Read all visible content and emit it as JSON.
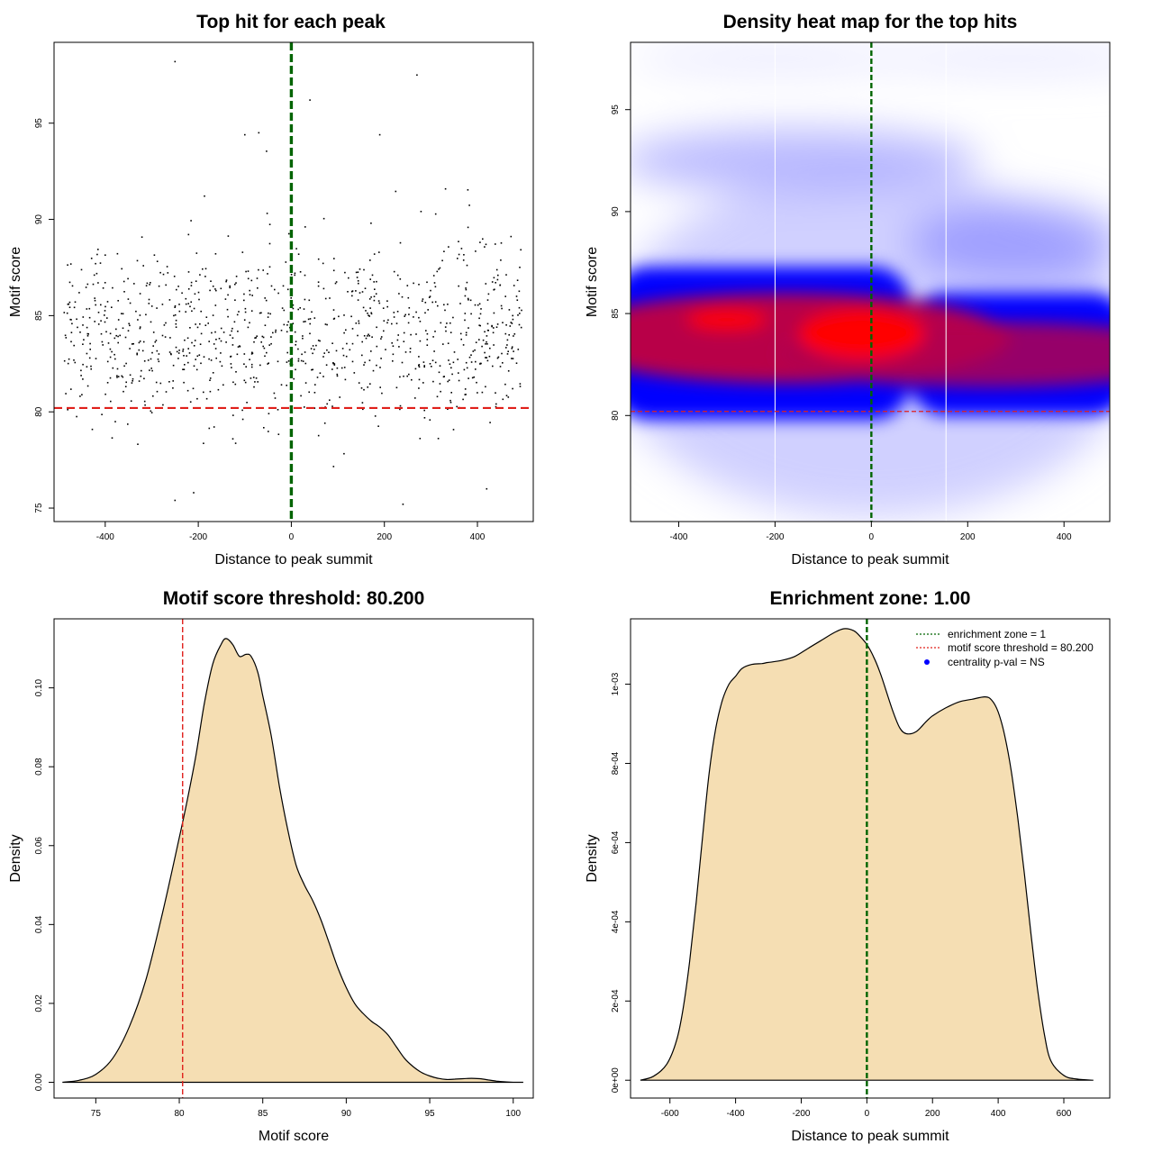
{
  "colors": {
    "threshold_red": "#e0201b",
    "zone_green": "#006400",
    "density_fill": "#f5deb3",
    "heat_low": "#ffffff",
    "heat_mid": "#0000ff",
    "heat_high": "#ff0000"
  },
  "chart_data": [
    {
      "id": "scatter",
      "type": "scatter",
      "title": "Top hit for each peak",
      "xlabel": "Distance to peak summit",
      "ylabel": "Motif score",
      "xlim": [
        -510,
        520
      ],
      "ylim": [
        74.3,
        99.2
      ],
      "xticks": [
        -400,
        -200,
        0,
        200,
        400
      ],
      "xtick_labels": [
        "-400",
        "-200",
        "0",
        "200",
        "400"
      ],
      "yticks": [
        75,
        80,
        85,
        90,
        95
      ],
      "ytick_labels": [
        "75",
        "80",
        "85",
        "90",
        "95"
      ],
      "threshold": 80.2,
      "zone_center": 0,
      "n_points": 1000,
      "highlight_points": [
        [
          -250,
          98.2
        ],
        [
          270,
          97.5
        ],
        [
          40,
          96.2
        ],
        [
          -70,
          94.5
        ],
        [
          -100,
          94.4
        ],
        [
          190,
          94.4
        ],
        [
          240,
          75.2
        ],
        [
          -250,
          75.4
        ],
        [
          -210,
          75.8
        ],
        [
          420,
          76.0
        ]
      ]
    },
    {
      "id": "heatmap",
      "type": "heatmap",
      "title": "Density heat map for the top hits",
      "xlabel": "Distance to peak summit",
      "ylabel": "Motif score",
      "xlim": [
        -500,
        495
      ],
      "ylim": [
        74.8,
        98.3
      ],
      "xticks": [
        -400,
        -200,
        0,
        200,
        400
      ],
      "xtick_labels": [
        "-400",
        "-200",
        "0",
        "200",
        "400"
      ],
      "yticks": [
        80,
        85,
        90,
        95
      ],
      "ytick_labels": [
        "80",
        "85",
        "90",
        "95"
      ],
      "threshold": 80.2,
      "zone_center": 0,
      "white_guides": [
        -200,
        155
      ],
      "color_scale": [
        "white",
        "blue",
        "red"
      ]
    },
    {
      "id": "score-density",
      "type": "area",
      "title": "Motif score threshold: 80.200",
      "xlabel": "Motif score",
      "ylabel": "Density",
      "xlim": [
        72.5,
        101.2
      ],
      "ylim": [
        -0.004,
        0.1175
      ],
      "xticks": [
        75,
        80,
        85,
        90,
        95,
        100
      ],
      "xtick_labels": [
        "75",
        "80",
        "85",
        "90",
        "95",
        "100"
      ],
      "yticks": [
        0.0,
        0.02,
        0.04,
        0.06,
        0.08,
        0.1
      ],
      "ytick_labels": [
        "0.00",
        "0.02",
        "0.04",
        "0.06",
        "0.08",
        "0.10"
      ],
      "threshold": 80.2,
      "x": [
        73.0,
        74.0,
        75.0,
        76.0,
        77.0,
        78.0,
        79.0,
        80.0,
        80.5,
        81.0,
        81.5,
        82.0,
        82.5,
        82.8,
        83.2,
        83.6,
        84.0,
        84.3,
        84.7,
        85.0,
        85.5,
        86.0,
        86.5,
        87.0,
        87.5,
        88.0,
        88.5,
        89.0,
        89.5,
        90.0,
        90.5,
        91.0,
        91.5,
        92.0,
        92.5,
        93.0,
        93.5,
        94.0,
        94.5,
        95.0,
        95.5,
        96.0,
        96.5,
        97.0,
        97.5,
        98.0,
        98.5,
        99.0,
        99.5,
        100.0,
        100.6
      ],
      "y": [
        0.0,
        0.0005,
        0.002,
        0.006,
        0.014,
        0.026,
        0.043,
        0.062,
        0.072,
        0.083,
        0.096,
        0.106,
        0.111,
        0.1125,
        0.111,
        0.108,
        0.1085,
        0.108,
        0.104,
        0.098,
        0.088,
        0.075,
        0.064,
        0.055,
        0.05,
        0.046,
        0.041,
        0.035,
        0.029,
        0.024,
        0.02,
        0.0175,
        0.0155,
        0.014,
        0.012,
        0.009,
        0.006,
        0.004,
        0.0025,
        0.0016,
        0.001,
        0.0007,
        0.0008,
        0.0009,
        0.001,
        0.0009,
        0.0006,
        0.0003,
        0.0001,
        0.0,
        0.0
      ]
    },
    {
      "id": "distance-density",
      "type": "area",
      "title": "Enrichment zone: 1.00",
      "xlabel": "Distance to peak summit",
      "ylabel": "Density",
      "xlim": [
        -720,
        740
      ],
      "ylim": [
        -4.5e-05,
        0.001165
      ],
      "xticks": [
        -600,
        -400,
        -200,
        0,
        200,
        400,
        600
      ],
      "xtick_labels": [
        "-600",
        "-400",
        "-200",
        "0",
        "200",
        "400",
        "600"
      ],
      "yticks": [
        0.0,
        0.0002,
        0.0004,
        0.0006,
        0.0008,
        0.001
      ],
      "ytick_labels": [
        "0e+00",
        "2e-04",
        "4e-04",
        "6e-04",
        "8e-04",
        "1e-03"
      ],
      "zone_center": 0,
      "legend_position": "top-right",
      "legend": [
        "enrichment zone = 1",
        "motif score threshold = 80.200",
        "centrality p-val = NS"
      ],
      "x": [
        -690,
        -650,
        -610,
        -580,
        -560,
        -540,
        -520,
        -500,
        -480,
        -460,
        -440,
        -420,
        -400,
        -380,
        -350,
        -320,
        -300,
        -260,
        -220,
        -180,
        -140,
        -100,
        -70,
        -40,
        -20,
        0,
        20,
        40,
        60,
        80,
        100,
        120,
        150,
        180,
        200,
        240,
        280,
        320,
        360,
        380,
        400,
        420,
        440,
        460,
        480,
        500,
        520,
        540,
        560,
        600,
        640,
        690
      ],
      "y": [
        0.0,
        1e-05,
        4e-05,
        0.0001,
        0.00018,
        0.0003,
        0.00045,
        0.00062,
        0.00078,
        0.00089,
        0.00096,
        0.001,
        0.00102,
        0.00104,
        0.00105,
        0.001052,
        0.001055,
        0.00106,
        0.00107,
        0.00109,
        0.00111,
        0.00113,
        0.00114,
        0.001135,
        0.00112,
        0.0011,
        0.00107,
        0.00103,
        0.00098,
        0.00093,
        0.00089,
        0.000875,
        0.00088,
        0.000905,
        0.00092,
        0.00094,
        0.000955,
        0.000962,
        0.000968,
        0.00096,
        0.00093,
        0.00087,
        0.00078,
        0.00066,
        0.00052,
        0.00037,
        0.00023,
        0.00012,
        5e-05,
        1.2e-05,
        3e-06,
        0.0
      ]
    }
  ]
}
